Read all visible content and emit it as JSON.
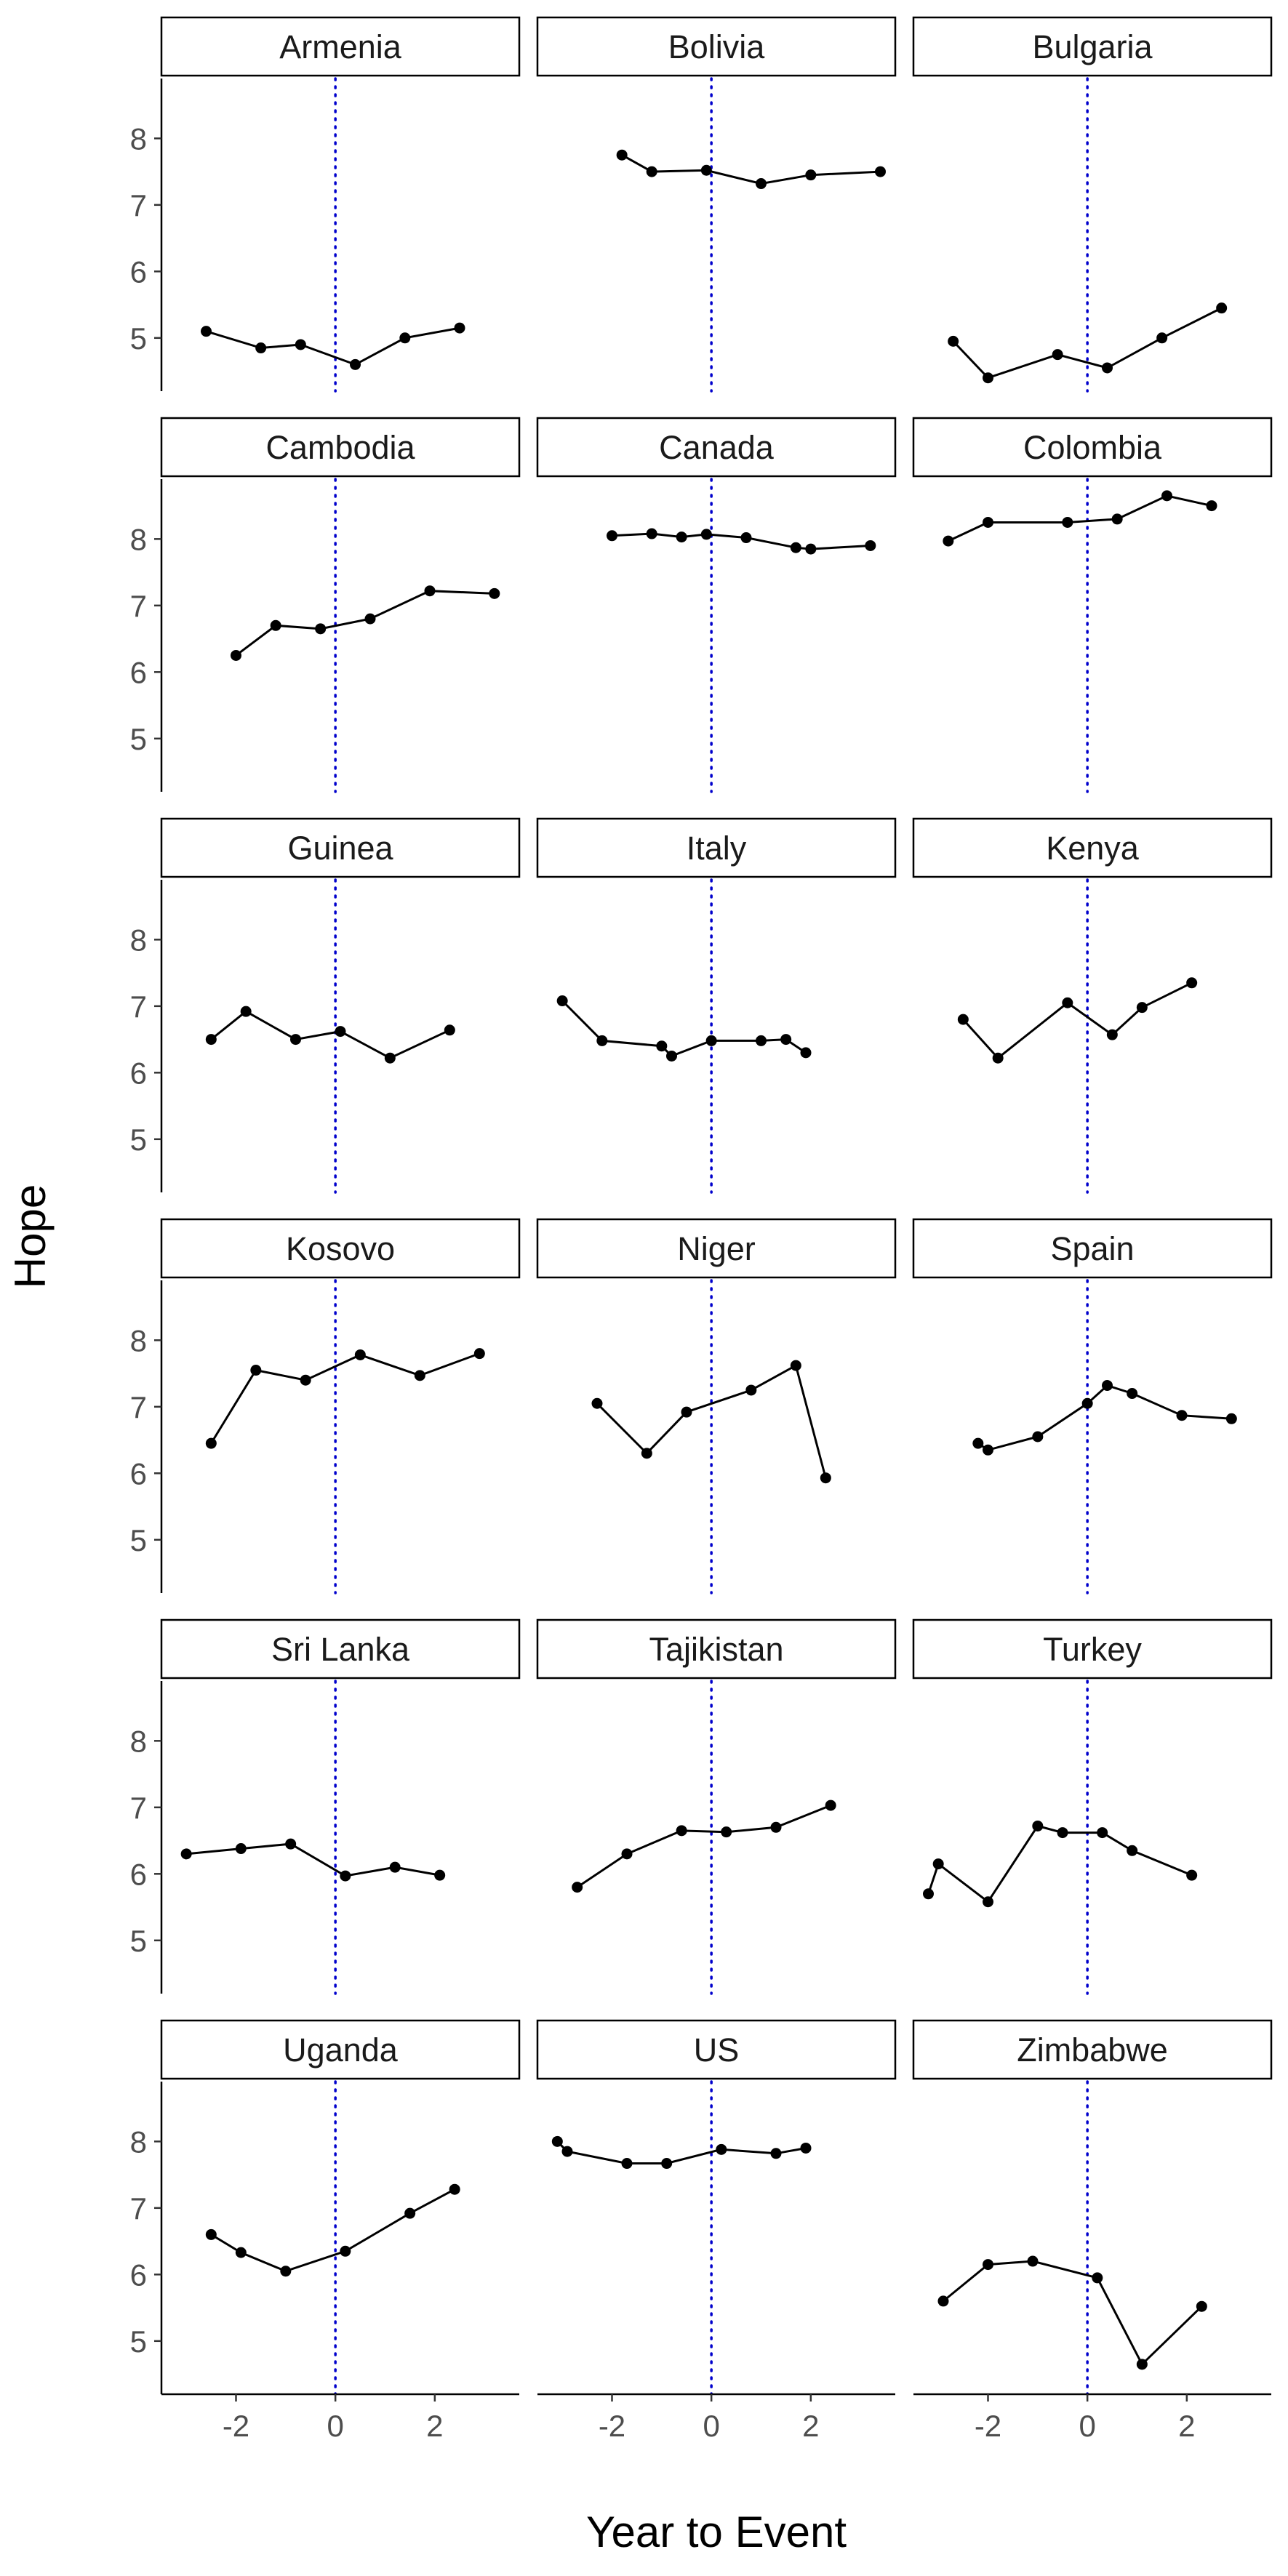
{
  "chart_data": {
    "type": "line",
    "facet": "wrap",
    "ylabel": "Hope",
    "xlabel": "Year to Event",
    "xlim": [
      -3.5,
      3.7
    ],
    "ylim": [
      4.2,
      8.9
    ],
    "x_ticks": [
      -2,
      0,
      2
    ],
    "x_tick_labels": [
      "-2",
      "0",
      "2"
    ],
    "y_ticks": [
      5,
      6,
      7,
      8
    ],
    "y_tick_labels": [
      "5",
      "6",
      "7",
      "8"
    ],
    "reference_line": {
      "x": 0,
      "style": "dotted",
      "color": "#0000cc"
    },
    "line_color": "#000000",
    "grid": false,
    "legend": "none",
    "panels": [
      {
        "name": "Armenia",
        "x": [
          -2.6,
          -1.5,
          -0.7,
          0.4,
          1.4,
          2.5
        ],
        "y": [
          5.1,
          4.85,
          4.9,
          4.6,
          5.0,
          5.15
        ]
      },
      {
        "name": "Bolivia",
        "x": [
          -1.8,
          -1.2,
          -0.1,
          1.0,
          2.0,
          3.4
        ],
        "y": [
          7.75,
          7.5,
          7.52,
          7.32,
          7.45,
          7.5
        ]
      },
      {
        "name": "Bulgaria",
        "x": [
          -2.7,
          -2.0,
          -0.6,
          0.4,
          1.5,
          2.7
        ],
        "y": [
          4.95,
          4.4,
          4.75,
          4.55,
          5.0,
          5.45
        ]
      },
      {
        "name": "Cambodia",
        "x": [
          -2.0,
          -1.2,
          -0.3,
          0.7,
          1.9,
          3.2
        ],
        "y": [
          6.25,
          6.7,
          6.65,
          6.8,
          7.22,
          7.18
        ]
      },
      {
        "name": "Canada",
        "x": [
          -2.0,
          -1.2,
          -0.6,
          -0.1,
          0.7,
          1.7,
          2.0,
          3.2
        ],
        "y": [
          8.05,
          8.08,
          8.03,
          8.07,
          8.02,
          7.87,
          7.85,
          7.9
        ]
      },
      {
        "name": "Colombia",
        "x": [
          -2.8,
          -2.0,
          -0.4,
          0.6,
          1.6,
          2.5
        ],
        "y": [
          7.97,
          8.25,
          8.25,
          8.3,
          8.65,
          8.5
        ]
      },
      {
        "name": "Guinea",
        "x": [
          -2.5,
          -1.8,
          -0.8,
          0.1,
          1.1,
          2.3
        ],
        "y": [
          6.5,
          6.92,
          6.5,
          6.62,
          6.22,
          6.64
        ]
      },
      {
        "name": "Italy",
        "x": [
          -3.0,
          -2.2,
          -1.0,
          -0.8,
          0.0,
          1.0,
          1.5,
          1.9
        ],
        "y": [
          7.08,
          6.48,
          6.4,
          6.25,
          6.48,
          6.48,
          6.5,
          6.3
        ]
      },
      {
        "name": "Kenya",
        "x": [
          -2.5,
          -1.8,
          -0.4,
          0.5,
          1.1,
          2.1
        ],
        "y": [
          6.8,
          6.22,
          7.05,
          6.57,
          6.98,
          7.35
        ]
      },
      {
        "name": "Kosovo",
        "x": [
          -2.5,
          -1.6,
          -0.6,
          0.5,
          1.7,
          2.9
        ],
        "y": [
          6.45,
          7.55,
          7.4,
          7.78,
          7.47,
          7.8
        ]
      },
      {
        "name": "Niger",
        "x": [
          -2.3,
          -1.3,
          -0.5,
          0.8,
          1.7,
          2.3
        ],
        "y": [
          7.05,
          6.3,
          6.92,
          7.25,
          7.62,
          5.93
        ]
      },
      {
        "name": "Spain",
        "x": [
          -2.2,
          -2.0,
          -1.0,
          0.0,
          0.4,
          0.9,
          1.9,
          2.9
        ],
        "y": [
          6.45,
          6.35,
          6.55,
          7.05,
          7.32,
          7.2,
          6.87,
          6.82
        ]
      },
      {
        "name": "Sri Lanka",
        "x": [
          -3.0,
          -1.9,
          -0.9,
          0.2,
          1.2,
          2.1
        ],
        "y": [
          6.3,
          6.38,
          6.45,
          5.97,
          6.1,
          5.98
        ]
      },
      {
        "name": "Tajikistan",
        "x": [
          -2.7,
          -1.7,
          -0.6,
          0.3,
          1.3,
          2.4
        ],
        "y": [
          5.8,
          6.3,
          6.65,
          6.63,
          6.7,
          7.03
        ]
      },
      {
        "name": "Turkey",
        "x": [
          -3.2,
          -3.0,
          -2.0,
          -1.0,
          -0.5,
          0.3,
          0.9,
          2.1
        ],
        "y": [
          5.7,
          6.15,
          5.58,
          6.72,
          6.62,
          6.62,
          6.35,
          5.98
        ]
      },
      {
        "name": "Uganda",
        "x": [
          -2.5,
          -1.9,
          -1.0,
          0.2,
          1.5,
          2.4
        ],
        "y": [
          6.6,
          6.33,
          6.05,
          6.35,
          6.92,
          7.28
        ]
      },
      {
        "name": "US",
        "x": [
          -3.1,
          -2.9,
          -1.7,
          -0.9,
          0.2,
          1.3,
          1.9
        ],
        "y": [
          8.0,
          7.85,
          7.67,
          7.67,
          7.88,
          7.82,
          7.9
        ]
      },
      {
        "name": "Zimbabwe",
        "x": [
          -2.9,
          -2.0,
          -1.1,
          0.2,
          1.1,
          2.3
        ],
        "y": [
          5.6,
          6.15,
          6.2,
          5.95,
          4.65,
          5.52
        ]
      }
    ]
  }
}
